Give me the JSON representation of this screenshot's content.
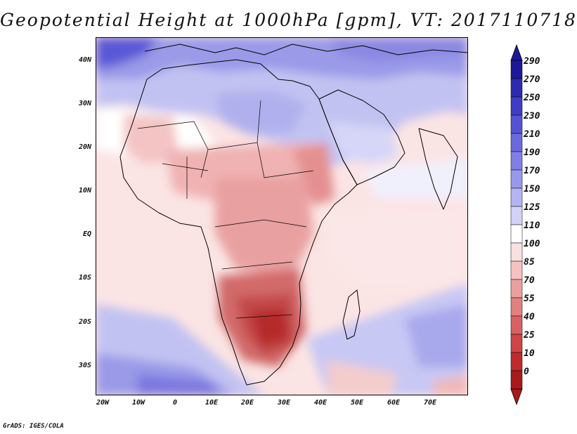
{
  "title": "Geopotential Height at 1000hPa [gpm], VT: 2017110718",
  "credit": "GrADS: IGES/COLA",
  "lat_labels": [
    "40N",
    "30N",
    "20N",
    "10N",
    "EQ",
    "10S",
    "20S",
    "30S"
  ],
  "lon_labels": [
    "20W",
    "10W",
    "0",
    "10E",
    "20E",
    "30E",
    "40E",
    "50E",
    "60E",
    "70E"
  ],
  "colorbar": {
    "labels": [
      "290",
      "270",
      "250",
      "230",
      "210",
      "190",
      "170",
      "150",
      "125",
      "110",
      "100",
      "85",
      "70",
      "55",
      "40",
      "25",
      "10",
      "0"
    ],
    "colors": [
      "#1c1898",
      "#2e2ab0",
      "#3f3dc4",
      "#5553d4",
      "#6a69de",
      "#807fe6",
      "#9898ec",
      "#b4b4f2",
      "#d2d2f8",
      "#ffffff",
      "#fbe0e0",
      "#f5c2c2",
      "#eba0a0",
      "#e08080",
      "#d86262",
      "#cd4545",
      "#bf2a2a",
      "#a81a1a"
    ]
  }
}
